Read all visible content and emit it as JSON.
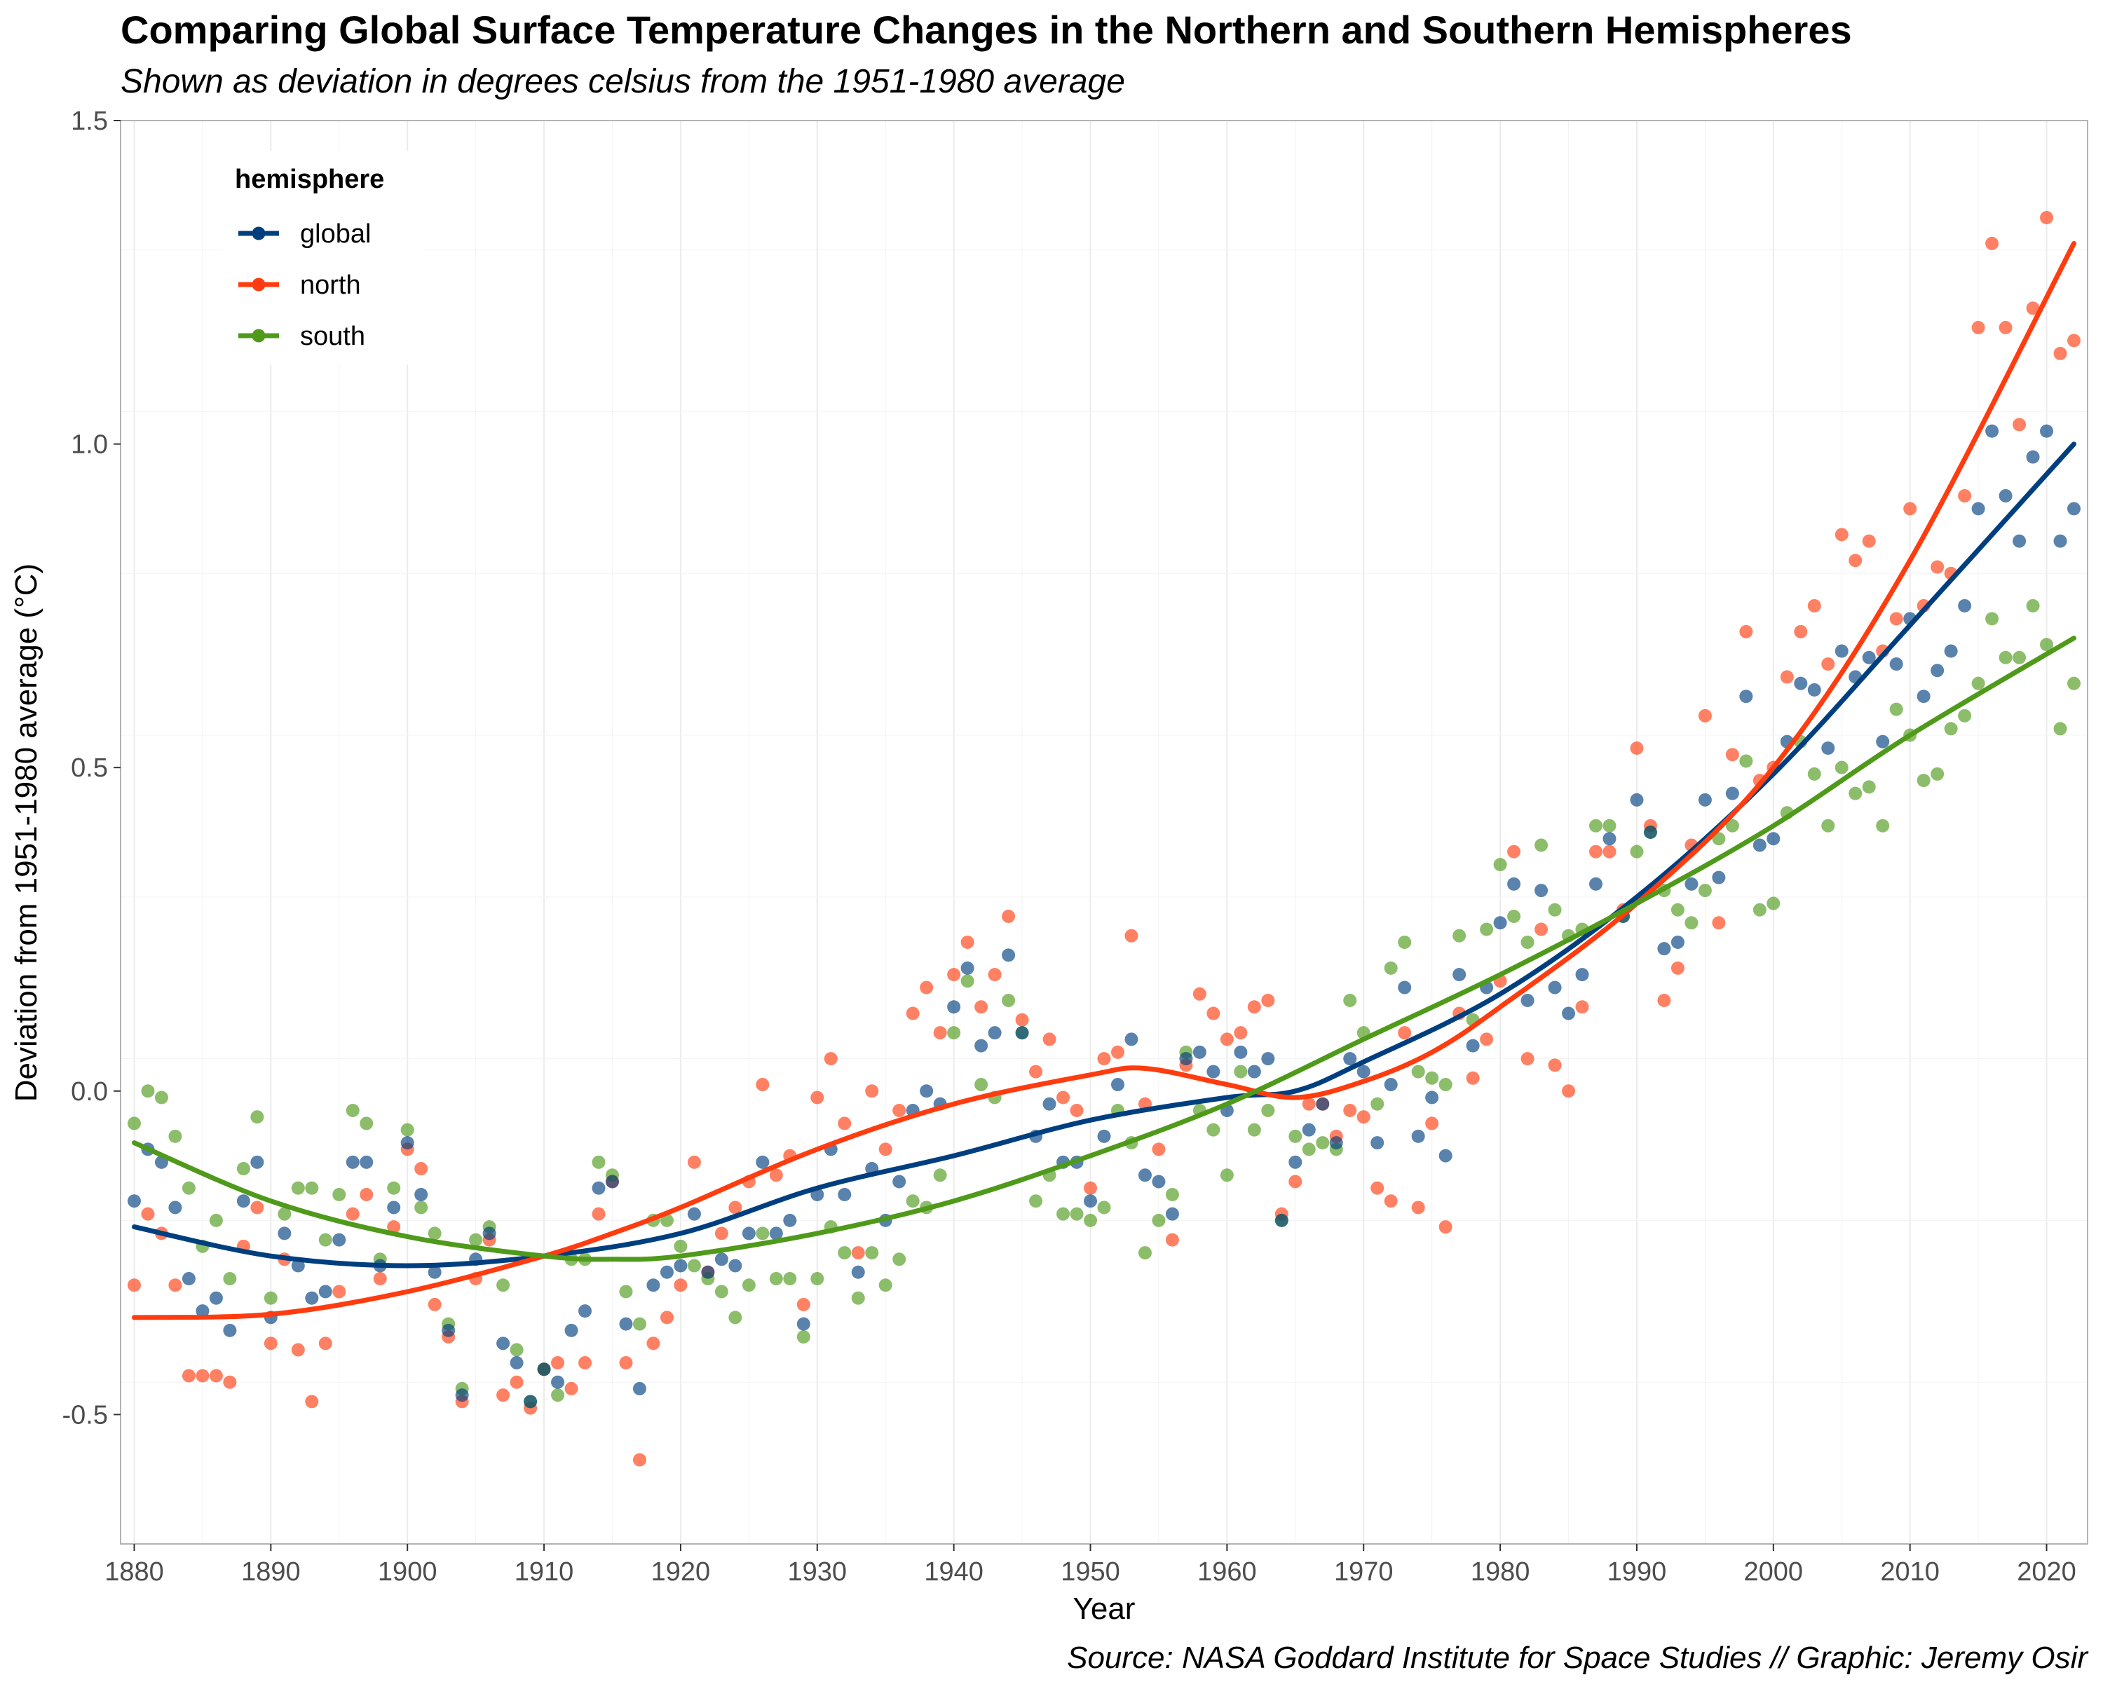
{
  "chart_data": {
    "type": "line",
    "title": "Comparing Global Surface Temperature Changes in the Northern and Southern Hemispheres",
    "subtitle": "Shown as deviation in degrees celsius from the 1951-1980 average",
    "caption": "Source: NASA Goddard Institute for Space Studies // Graphic: Jeremy Osir",
    "xlabel": "Year",
    "ylabel": "Deviation from 1951-1980 average (°C)",
    "xlim": [
      1879,
      2023
    ],
    "ylim": [
      -0.7,
      1.5
    ],
    "xticks": [
      1880,
      1890,
      1900,
      1910,
      1920,
      1930,
      1940,
      1950,
      1960,
      1970,
      1980,
      1990,
      2000,
      2010,
      2020
    ],
    "yticks": [
      -0.5,
      0.0,
      0.5,
      1.0,
      1.5
    ],
    "ytick_labels": [
      "-0.5",
      "0.0",
      "0.5",
      "1.0",
      "1.5"
    ],
    "grid": true,
    "legend": {
      "title": "hemisphere",
      "position": "top-left"
    },
    "x": [
      1880,
      1881,
      1882,
      1883,
      1884,
      1885,
      1886,
      1887,
      1888,
      1889,
      1890,
      1891,
      1892,
      1893,
      1894,
      1895,
      1896,
      1897,
      1898,
      1899,
      1900,
      1901,
      1902,
      1903,
      1904,
      1905,
      1906,
      1907,
      1908,
      1909,
      1910,
      1911,
      1912,
      1913,
      1914,
      1915,
      1916,
      1917,
      1918,
      1919,
      1920,
      1921,
      1922,
      1923,
      1924,
      1925,
      1926,
      1927,
      1928,
      1929,
      1930,
      1931,
      1932,
      1933,
      1934,
      1935,
      1936,
      1937,
      1938,
      1939,
      1940,
      1941,
      1942,
      1943,
      1944,
      1945,
      1946,
      1947,
      1948,
      1949,
      1950,
      1951,
      1952,
      1953,
      1954,
      1955,
      1956,
      1957,
      1958,
      1959,
      1960,
      1961,
      1962,
      1963,
      1964,
      1965,
      1966,
      1967,
      1968,
      1969,
      1970,
      1971,
      1972,
      1973,
      1974,
      1975,
      1976,
      1977,
      1978,
      1979,
      1980,
      1981,
      1982,
      1983,
      1984,
      1985,
      1986,
      1987,
      1988,
      1989,
      1990,
      1991,
      1992,
      1993,
      1994,
      1995,
      1996,
      1997,
      1998,
      1999,
      2000,
      2001,
      2002,
      2003,
      2004,
      2005,
      2006,
      2007,
      2008,
      2009,
      2010,
      2011,
      2012,
      2013,
      2014,
      2015,
      2016,
      2017,
      2018,
      2019,
      2020,
      2021,
      2022
    ],
    "series": [
      {
        "name": "global",
        "color": "#003f7f",
        "values": [
          -0.17,
          -0.09,
          -0.11,
          -0.18,
          -0.29,
          -0.34,
          -0.32,
          -0.37,
          -0.17,
          -0.11,
          -0.35,
          -0.22,
          -0.27,
          -0.32,
          -0.31,
          -0.23,
          -0.11,
          -0.11,
          -0.27,
          -0.18,
          -0.08,
          -0.16,
          -0.28,
          -0.37,
          -0.47,
          -0.26,
          -0.22,
          -0.39,
          -0.42,
          -0.48,
          -0.43,
          -0.45,
          -0.37,
          -0.34,
          -0.15,
          -0.14,
          -0.36,
          -0.46,
          -0.3,
          -0.28,
          -0.27,
          -0.19,
          -0.28,
          -0.26,
          -0.27,
          -0.22,
          -0.11,
          -0.22,
          -0.2,
          -0.36,
          -0.16,
          -0.09,
          -0.16,
          -0.28,
          -0.12,
          -0.2,
          -0.14,
          -0.03,
          0.0,
          -0.02,
          0.13,
          0.19,
          0.07,
          0.09,
          0.21,
          0.09,
          -0.07,
          -0.02,
          -0.11,
          -0.11,
          -0.17,
          -0.07,
          0.01,
          0.08,
          -0.13,
          -0.14,
          -0.19,
          0.05,
          0.06,
          0.03,
          -0.03,
          0.06,
          0.03,
          0.05,
          -0.2,
          -0.11,
          -0.06,
          -0.02,
          -0.08,
          0.05,
          0.03,
          -0.08,
          0.01,
          0.16,
          -0.07,
          -0.01,
          -0.1,
          0.18,
          0.07,
          0.16,
          0.26,
          0.32,
          0.14,
          0.31,
          0.16,
          0.12,
          0.18,
          0.32,
          0.39,
          0.27,
          0.45,
          0.4,
          0.22,
          0.23,
          0.32,
          0.45,
          0.33,
          0.46,
          0.61,
          0.38,
          0.39,
          0.54,
          0.63,
          0.62,
          0.53,
          0.68,
          0.64,
          0.67,
          0.54,
          0.66,
          0.73,
          0.61,
          0.65,
          0.68,
          0.75,
          0.9,
          1.02,
          0.92,
          0.85,
          0.98,
          1.02,
          0.85,
          0.9
        ]
      },
      {
        "name": "north",
        "color": "#ff3c0f",
        "values": [
          -0.3,
          -0.19,
          -0.22,
          -0.3,
          -0.44,
          -0.44,
          -0.44,
          -0.45,
          -0.24,
          -0.18,
          -0.39,
          -0.26,
          -0.4,
          -0.48,
          -0.39,
          -0.31,
          -0.19,
          -0.16,
          -0.29,
          -0.21,
          -0.09,
          -0.12,
          -0.33,
          -0.38,
          -0.48,
          -0.29,
          -0.23,
          -0.47,
          -0.45,
          -0.49,
          -0.43,
          -0.42,
          -0.46,
          -0.42,
          -0.19,
          -0.14,
          -0.42,
          -0.57,
          -0.39,
          -0.35,
          -0.3,
          -0.11,
          -0.28,
          -0.22,
          -0.18,
          -0.14,
          0.01,
          -0.13,
          -0.1,
          -0.33,
          -0.01,
          0.05,
          -0.05,
          -0.25,
          0.0,
          -0.09,
          -0.03,
          0.12,
          0.16,
          0.09,
          0.18,
          0.23,
          0.13,
          0.18,
          0.27,
          0.11,
          0.03,
          0.08,
          -0.01,
          -0.03,
          -0.15,
          0.05,
          0.06,
          0.24,
          -0.02,
          -0.09,
          -0.23,
          0.04,
          0.15,
          0.12,
          0.08,
          0.09,
          0.13,
          0.14,
          -0.19,
          -0.14,
          -0.02,
          -0.02,
          -0.07,
          -0.03,
          -0.04,
          -0.15,
          -0.17,
          0.09,
          -0.18,
          -0.05,
          -0.21,
          0.12,
          0.02,
          0.08,
          0.17,
          0.37,
          0.05,
          0.25,
          0.04,
          0.0,
          0.13,
          0.37,
          0.37,
          0.28,
          0.53,
          0.41,
          0.14,
          0.19,
          0.38,
          0.58,
          0.26,
          0.52,
          0.71,
          0.48,
          0.5,
          0.64,
          0.71,
          0.75,
          0.66,
          0.86,
          0.82,
          0.85,
          0.68,
          0.73,
          0.9,
          0.75,
          0.81,
          0.8,
          0.92,
          1.18,
          1.31,
          1.18,
          1.03,
          1.21,
          1.35,
          1.14,
          1.16
        ]
      },
      {
        "name": "south",
        "color": "#4f9a1a",
        "values": [
          -0.05,
          0.0,
          -0.01,
          -0.07,
          -0.15,
          -0.24,
          -0.2,
          -0.29,
          -0.12,
          -0.04,
          -0.32,
          -0.19,
          -0.15,
          -0.15,
          -0.23,
          -0.16,
          -0.03,
          -0.05,
          -0.26,
          -0.15,
          -0.06,
          -0.18,
          -0.22,
          -0.36,
          -0.46,
          -0.23,
          -0.21,
          -0.3,
          -0.4,
          -0.48,
          -0.43,
          -0.47,
          -0.26,
          -0.26,
          -0.11,
          -0.13,
          -0.31,
          -0.36,
          -0.2,
          -0.2,
          -0.24,
          -0.27,
          -0.29,
          -0.31,
          -0.35,
          -0.3,
          -0.22,
          -0.29,
          -0.29,
          -0.38,
          -0.29,
          -0.21,
          -0.25,
          -0.32,
          -0.25,
          -0.3,
          -0.26,
          -0.17,
          -0.18,
          -0.13,
          0.09,
          0.17,
          0.01,
          -0.01,
          0.14,
          0.09,
          -0.17,
          -0.13,
          -0.19,
          -0.19,
          -0.2,
          -0.18,
          -0.03,
          -0.08,
          -0.25,
          -0.2,
          -0.16,
          0.06,
          -0.03,
          -0.06,
          -0.13,
          0.03,
          -0.06,
          -0.03,
          -0.2,
          -0.07,
          -0.09,
          -0.08,
          -0.09,
          0.14,
          0.09,
          -0.02,
          0.19,
          0.23,
          0.03,
          0.02,
          0.01,
          0.24,
          0.11,
          0.25,
          0.35,
          0.27,
          0.23,
          0.38,
          0.28,
          0.24,
          0.25,
          0.41,
          0.41,
          0.27,
          0.37,
          0.4,
          0.31,
          0.28,
          0.26,
          0.31,
          0.39,
          0.41,
          0.51,
          0.28,
          0.29,
          0.43,
          0.54,
          0.49,
          0.41,
          0.5,
          0.46,
          0.47,
          0.41,
          0.59,
          0.55,
          0.48,
          0.49,
          0.56,
          0.58,
          0.63,
          0.73,
          0.67,
          0.67,
          0.75,
          0.69,
          0.56,
          0.63
        ]
      }
    ],
    "smooth": [
      {
        "name": "global",
        "x": [
          1880,
          1890,
          1900,
          1910,
          1920,
          1930,
          1940,
          1950,
          1960,
          1965,
          1970,
          1980,
          1990,
          2000,
          2010,
          2022
        ],
        "y": [
          -0.21,
          -0.255,
          -0.27,
          -0.255,
          -0.22,
          -0.15,
          -0.1,
          -0.045,
          -0.01,
          0.0,
          0.045,
          0.15,
          0.3,
          0.49,
          0.72,
          1.0
        ]
      },
      {
        "name": "north",
        "x": [
          1880,
          1890,
          1900,
          1910,
          1915,
          1920,
          1930,
          1940,
          1950,
          1954,
          1960,
          1965,
          1970,
          1975,
          1980,
          1990,
          2000,
          2010,
          2022
        ],
        "y": [
          -0.35,
          -0.345,
          -0.31,
          -0.255,
          -0.22,
          -0.18,
          -0.09,
          -0.02,
          0.025,
          0.035,
          0.01,
          -0.01,
          0.015,
          0.06,
          0.13,
          0.29,
          0.5,
          0.82,
          1.31
        ]
      },
      {
        "name": "south",
        "x": [
          1880,
          1890,
          1900,
          1910,
          1915,
          1920,
          1930,
          1940,
          1950,
          1960,
          1970,
          1980,
          1990,
          2000,
          2010,
          2022
        ],
        "y": [
          -0.08,
          -0.17,
          -0.225,
          -0.255,
          -0.26,
          -0.255,
          -0.22,
          -0.17,
          -0.1,
          -0.02,
          0.08,
          0.18,
          0.29,
          0.41,
          0.55,
          0.7
        ]
      }
    ]
  }
}
